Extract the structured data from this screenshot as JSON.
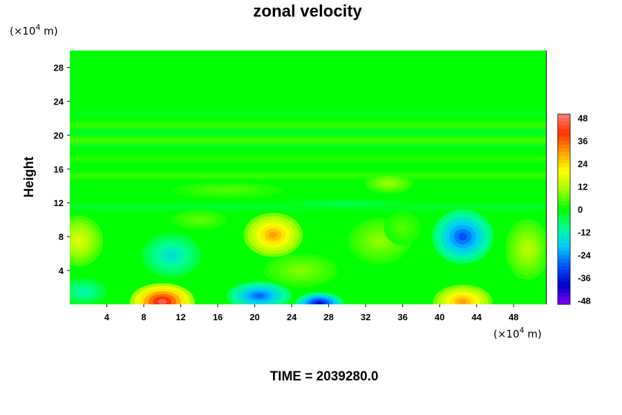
{
  "chart_data": {
    "type": "heatmap",
    "title": "zonal velocity",
    "ylabel": "Height",
    "xlabel": "",
    "x_unit": {
      "prefix": "(×10",
      "exp": "4",
      "suffix": " m)"
    },
    "y_unit": {
      "prefix": "(×10",
      "exp": "4",
      "suffix": " m)"
    },
    "xlim": [
      0,
      51.5
    ],
    "ylim": [
      0,
      30
    ],
    "x_ticks": [
      "4",
      "8",
      "12",
      "16",
      "20",
      "24",
      "28",
      "32",
      "36",
      "40",
      "44",
      "48"
    ],
    "y_ticks": [
      "4",
      "8",
      "12",
      "16",
      "20",
      "24",
      "28"
    ],
    "colorbar": {
      "vmin": -50,
      "vmax": 50,
      "tick_labels": [
        "48",
        "36",
        "24",
        "12",
        "0",
        "-12",
        "-24",
        "-36",
        "-48"
      ]
    },
    "palette": [
      "#7f00ff",
      "#0000c8",
      "#0050ff",
      "#00c8ff",
      "#00ff96",
      "#00ff00",
      "#a0ff00",
      "#ffff00",
      "#ffa000",
      "#ff3000",
      "#ff8080"
    ],
    "features": [
      {
        "x": 10,
        "y": 0.3,
        "rx": 3.5,
        "ry": 2.2,
        "value": 46
      },
      {
        "x": 22,
        "y": 8.2,
        "rx": 3.2,
        "ry": 2.6,
        "value": 30
      },
      {
        "x": 42.5,
        "y": 0.3,
        "rx": 3.2,
        "ry": 2.0,
        "value": 30
      },
      {
        "x": 42.5,
        "y": 8.0,
        "rx": 3.3,
        "ry": 3.2,
        "value": -30
      },
      {
        "x": 20.5,
        "y": 1.0,
        "rx": 3.5,
        "ry": 1.7,
        "value": -28
      },
      {
        "x": 27,
        "y": 0.1,
        "rx": 2.6,
        "ry": 1.3,
        "value": -38
      },
      {
        "x": 11,
        "y": 5.8,
        "rx": 3.2,
        "ry": 2.6,
        "value": -16
      },
      {
        "x": 1.5,
        "y": 1.5,
        "rx": 2.5,
        "ry": 1.6,
        "value": -12
      },
      {
        "x": 1.0,
        "y": 7.5,
        "rx": 2.6,
        "ry": 3.0,
        "value": 16
      },
      {
        "x": 33.5,
        "y": 7.5,
        "rx": 3.4,
        "ry": 2.7,
        "value": 9
      },
      {
        "x": 49.5,
        "y": 6.5,
        "rx": 2.4,
        "ry": 3.6,
        "value": 12
      },
      {
        "x": 14,
        "y": 10.0,
        "rx": 3.0,
        "ry": 1.2,
        "value": 6
      },
      {
        "x": 25,
        "y": 4.0,
        "rx": 4.0,
        "ry": 2.0,
        "value": 8
      },
      {
        "x": 34.5,
        "y": 14.3,
        "rx": 2.6,
        "ry": 1.2,
        "value": 10
      },
      {
        "x": 17,
        "y": 13.5,
        "rx": 6.0,
        "ry": 1.0,
        "value": 5
      },
      {
        "x": 30,
        "y": 11.8,
        "rx": 8.0,
        "ry": 0.6,
        "value": -5
      },
      {
        "x": 36,
        "y": 9.0,
        "rx": 2.0,
        "ry": 2.0,
        "value": 5
      }
    ],
    "layers": [
      {
        "y": 11.5,
        "value": -4
      },
      {
        "y": 15.2,
        "value": 4
      },
      {
        "y": 17.2,
        "value": 3
      },
      {
        "y": 18.7,
        "value": -2
      },
      {
        "y": 19.4,
        "value": 5
      },
      {
        "y": 20.3,
        "value": -3
      },
      {
        "y": 21.2,
        "value": 4
      },
      {
        "y": 22.6,
        "value": -2
      }
    ]
  },
  "footer": {
    "time_label": "TIME = 2039280.0"
  }
}
